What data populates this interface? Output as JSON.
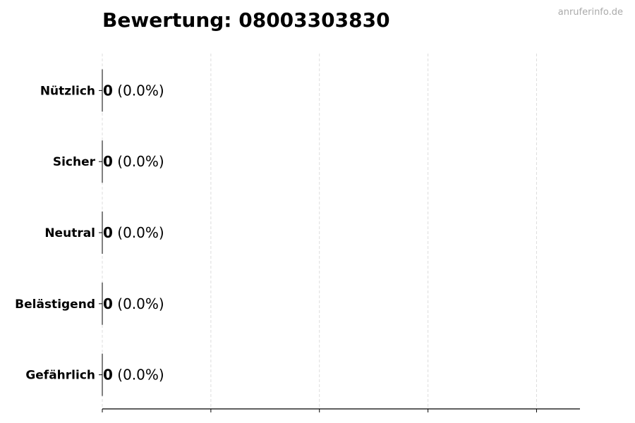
{
  "chart_data": {
    "type": "bar",
    "orientation": "horizontal",
    "title": "Bewertung: 08003303830",
    "watermark": "anruferinfo.de",
    "categories": [
      "Nützlich",
      "Sicher",
      "Neutral",
      "Belästigend",
      "Gefährlich"
    ],
    "values": [
      0,
      0,
      0,
      0,
      0
    ],
    "data_labels": [
      {
        "count": "0",
        "percent": "(0.0%)"
      },
      {
        "count": "0",
        "percent": "(0.0%)"
      },
      {
        "count": "0",
        "percent": "(0.0%)"
      },
      {
        "count": "0",
        "percent": "(0.0%)"
      },
      {
        "count": "0",
        "percent": "(0.0%)"
      }
    ],
    "xlim": [
      0,
      4.4
    ],
    "xticks": [
      0,
      1,
      2,
      3,
      4
    ],
    "xtick_labels_shown": false,
    "grid": "x dashed",
    "colors": {
      "grid": "#dddddd",
      "axis": "#000000",
      "watermark": "#aaaaaa"
    }
  }
}
